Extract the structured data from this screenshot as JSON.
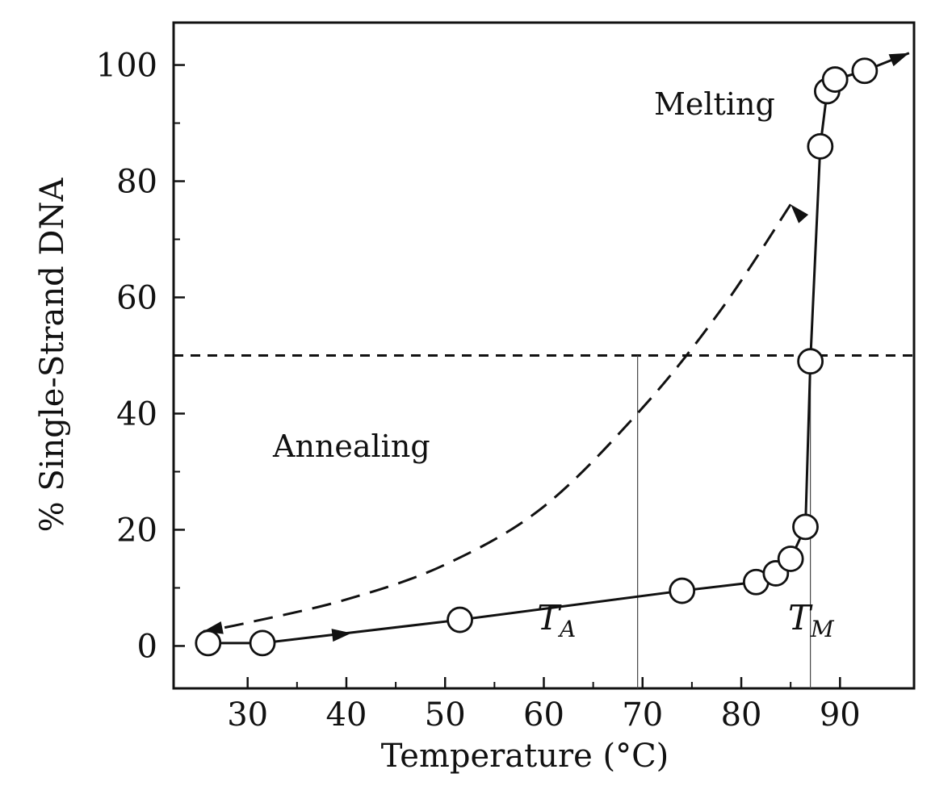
{
  "chart_data": {
    "type": "scatter",
    "xlabel": "Temperature (°C)",
    "ylabel": "% Single-Strand DNA",
    "xlim": [
      22.5,
      97.5
    ],
    "ylim": [
      -7.3,
      107.3
    ],
    "x_ticks": [
      30,
      40,
      50,
      60,
      70,
      80,
      90
    ],
    "y_ticks": [
      0,
      20,
      40,
      60,
      80,
      100
    ],
    "grid": false,
    "series": [
      {
        "name": "",
        "style": "solid-line-with-open-circles",
        "points": [
          {
            "x": 26.0,
            "y": 0.5
          },
          {
            "x": 31.5,
            "y": 0.5
          },
          {
            "x": 51.5,
            "y": 4.5
          },
          {
            "x": 74.0,
            "y": 9.5
          },
          {
            "x": 81.5,
            "y": 11.0
          },
          {
            "x": 83.5,
            "y": 12.5
          },
          {
            "x": 85.0,
            "y": 15.0
          },
          {
            "x": 86.5,
            "y": 20.5
          },
          {
            "x": 87.0,
            "y": 49.0
          },
          {
            "x": 88.0,
            "y": 86.0
          },
          {
            "x": 88.7,
            "y": 95.5
          },
          {
            "x": 89.5,
            "y": 97.5
          },
          {
            "x": 92.5,
            "y": 99.0
          }
        ]
      }
    ],
    "dashed_curve": {
      "style": "dashed",
      "direction": "from-high-to-low-temperature",
      "points": [
        {
          "x": 85.0,
          "y": 76.0
        },
        {
          "x": 78.0,
          "y": 58.0
        },
        {
          "x": 70.0,
          "y": 41.0
        },
        {
          "x": 60.0,
          "y": 24.0
        },
        {
          "x": 50.0,
          "y": 14.0
        },
        {
          "x": 40.0,
          "y": 8.0
        },
        {
          "x": 30.0,
          "y": 4.0
        },
        {
          "x": 25.5,
          "y": 2.5
        }
      ]
    },
    "reference_lines": {
      "horizontal_y": 50,
      "vertical_x": [
        69.5,
        87.0
      ]
    },
    "annotations": {
      "melting": "Melting",
      "annealing": "Annealing",
      "t_a": {
        "main": "T",
        "sub": "A"
      },
      "t_m": {
        "main": "T",
        "sub": "M"
      }
    }
  }
}
